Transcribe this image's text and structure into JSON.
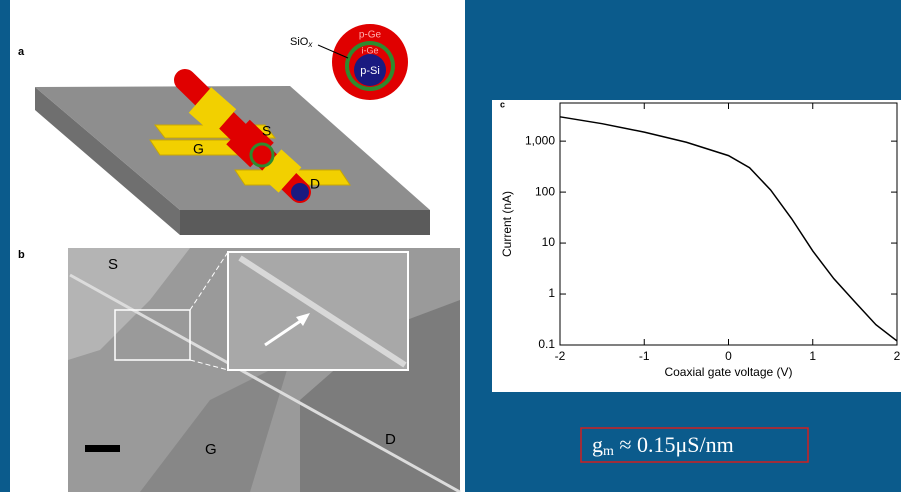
{
  "panel_a": {
    "letter": "a",
    "oxide": {
      "base": "SiO",
      "subscript": "x"
    },
    "shell_outer": "p-Ge",
    "shell_inner": "i-Ge",
    "core": "p-Si",
    "source": "S",
    "gate": "G",
    "drain": "D"
  },
  "panel_b": {
    "letter": "b",
    "source": "S",
    "gate": "G",
    "drain": "D"
  },
  "formula": {
    "symbol": "g",
    "subscript": "m",
    "rest": " ≈ 0.15μS/nm"
  },
  "chart_data": {
    "type": "line",
    "panel_letter": "c",
    "x_label": "Coaxial gate voltage (V)",
    "y_label": "Current (nA)",
    "x": [
      -2,
      -1.5,
      -1,
      -0.5,
      0,
      0.25,
      0.5,
      0.75,
      1,
      1.25,
      1.5,
      1.75,
      2
    ],
    "series": [
      {
        "color": "#000000",
        "values": [
          3000,
          2200,
          1500,
          950,
          520,
          300,
          110,
          30,
          7,
          2,
          0.7,
          0.25,
          0.12
        ]
      }
    ],
    "xlim": [
      -2,
      2
    ],
    "xticks": [
      -2,
      -1,
      0,
      1,
      2
    ],
    "ylim": [
      0.1,
      5600
    ],
    "yticks": [
      0.1,
      1,
      10,
      100,
      {
        "value": 1000,
        "label": "1,000"
      }
    ],
    "log_y": true
  }
}
